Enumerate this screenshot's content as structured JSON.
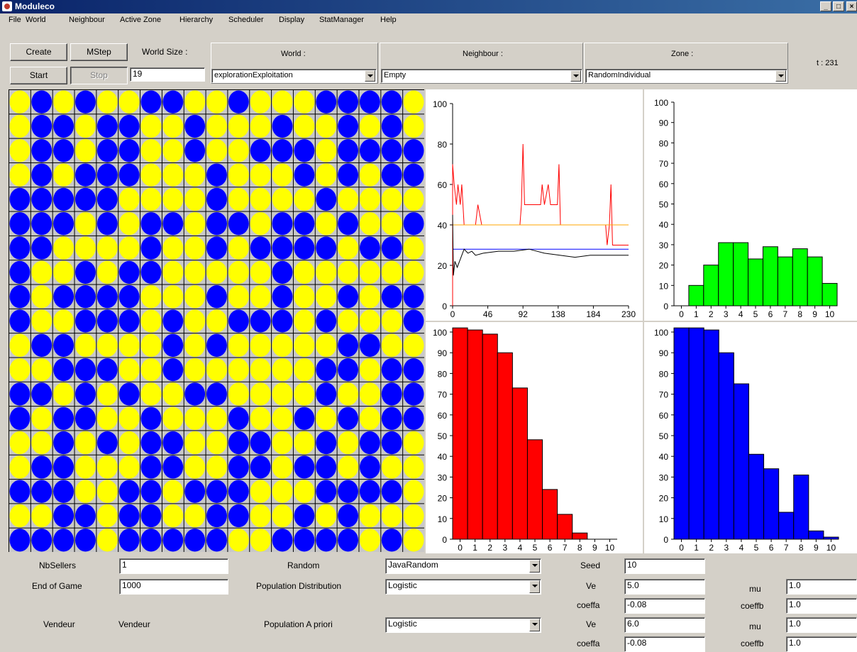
{
  "window": {
    "title": "Moduleco",
    "min_label": "_",
    "max_label": "□",
    "close_label": "×"
  },
  "menu": [
    "File",
    "World",
    "Neighbour",
    "Active Zone",
    "Hierarchy",
    "Scheduler",
    "Display",
    "StatManager",
    "Help"
  ],
  "toolbar": {
    "create": "Create",
    "mstep": "MStep",
    "start": "Start",
    "stop": "Stop",
    "world_size_label": "World Size :",
    "world_size_value": "19",
    "world_label": "World :",
    "world_value": "explorationExploitation",
    "neighbour_label": "Neighbour :",
    "neighbour_value": "Empty",
    "zone_label": "Zone :",
    "zone_value": "RandomIndividual",
    "time": "t : 231"
  },
  "grid": {
    "size": 19,
    "colors": {
      "Y": "#ffff00",
      "B": "#0000ff"
    },
    "rows": [
      "YBYBYYBBYYBYYYBBBBY",
      "YBBYBBYYBYYYBYYBYBY",
      "YBBYBBYYBYYBBBYBBBB",
      "YBYBBBYYYBYYYBYBYBB",
      "BBBBBYYYYBYYYYBYYYY",
      "BBBYBYBBYBBYBBYBYYB",
      "BBYYYYBYYBYBBBBYBBY",
      "BYYBYBBYYYYYBYYYYYY",
      "BYBBBBYYYBYYBYYBYBB",
      "BYYBBBYBYYBBBYBYYYB",
      "YBBYYYYBYBYYYYYBBYY",
      "YYBBBYYBYYYYYYBBYBB",
      "BBYBYBYYBBYYYYBYYBB",
      "BYBBYYBYYYBYYBYBYBB",
      "YYBYBYBBYYBBYYBYBBY",
      "YBBYYYBBYYBBYBBYBYY",
      "BBBYYBBYBBBYYYBBBBY",
      "YYBBYBBYYBBYYBYBYYY",
      "BBBBYBBBBBYYBBBBYBY"
    ]
  },
  "bottom": {
    "nbsellers_label": "NbSellers",
    "nbsellers_value": "1",
    "endgame_label": "End of Game",
    "endgame_value": "1000",
    "vendeur_label1": "Vendeur",
    "vendeur_label2": "Vendeur",
    "random_label": "Random",
    "random_value": "JavaRandom",
    "popdist_label": "Population Distribution",
    "popdist_value": "Logistic",
    "popapriori_label": "Population A priori",
    "popapriori_value": "Logistic",
    "seed_label": "Seed",
    "seed_value": "10",
    "ve_label1": "Ve",
    "ve_value1": "5.0",
    "coeffa_label1": "coeffa",
    "coeffa_value1": "-0.08",
    "ve_label2": "Ve",
    "ve_value2": "6.0",
    "coeffa_label2": "coeffa",
    "coeffa_value2": "-0.08",
    "mu_label1": "mu",
    "mu_value1": "1.0",
    "coeffb_label1": "coeffb",
    "coeffb_value1": "1.0",
    "mu_label2": "mu",
    "mu_value2": "1.0",
    "coeffb_label2": "coeffb",
    "coeffb_value2": "1.0"
  },
  "chart_data": [
    {
      "type": "line",
      "ylim": [
        0,
        100
      ],
      "xlim": [
        0,
        230
      ],
      "xticks": [
        "0",
        "46",
        "92",
        "138",
        "184",
        "230"
      ],
      "yticks": [
        "0",
        "20",
        "40",
        "60",
        "80",
        "100"
      ],
      "series": [
        {
          "color": "#ff0000",
          "points": [
            [
              0,
              0
            ],
            [
              0,
              70
            ],
            [
              2,
              60
            ],
            [
              5,
              50
            ],
            [
              7,
              60
            ],
            [
              10,
              50
            ],
            [
              12,
              60
            ],
            [
              15,
              40
            ],
            [
              30,
              40
            ],
            [
              33,
              50
            ],
            [
              38,
              40
            ],
            [
              40,
              40
            ],
            [
              88,
              40
            ],
            [
              90,
              50
            ],
            [
              92,
              80
            ],
            [
              94,
              50
            ],
            [
              115,
              50
            ],
            [
              117,
              60
            ],
            [
              120,
              50
            ],
            [
              125,
              60
            ],
            [
              128,
              50
            ],
            [
              137,
              50
            ],
            [
              139,
              70
            ],
            [
              141,
              40
            ],
            [
              200,
              40
            ],
            [
              202,
              30
            ],
            [
              205,
              40
            ],
            [
              207,
              60
            ],
            [
              209,
              30
            ],
            [
              230,
              30
            ]
          ]
        },
        {
          "color": "#ffa500",
          "points": [
            [
              0,
              40
            ],
            [
              230,
              40
            ]
          ]
        },
        {
          "color": "#0000ff",
          "points": [
            [
              0,
              28
            ],
            [
              230,
              28
            ]
          ]
        },
        {
          "color": "#000000",
          "points": [
            [
              0,
              45
            ],
            [
              1,
              15
            ],
            [
              3,
              22
            ],
            [
              6,
              19
            ],
            [
              10,
              23
            ],
            [
              15,
              28
            ],
            [
              20,
              26
            ],
            [
              25,
              27
            ],
            [
              30,
              25
            ],
            [
              40,
              26
            ],
            [
              60,
              27
            ],
            [
              80,
              27
            ],
            [
              100,
              28
            ],
            [
              120,
              26
            ],
            [
              140,
              25
            ],
            [
              160,
              24
            ],
            [
              180,
              25
            ],
            [
              200,
              25
            ],
            [
              230,
              25
            ]
          ]
        }
      ]
    },
    {
      "type": "bar",
      "ylim": [
        0,
        100
      ],
      "xticks": [
        "0",
        "1",
        "2",
        "3",
        "4",
        "5",
        "6",
        "7",
        "8",
        "9",
        "10"
      ],
      "yticks": [
        "0",
        "10",
        "20",
        "30",
        "40",
        "50",
        "60",
        "70",
        "80",
        "90",
        "100"
      ],
      "color": "#00ff00",
      "values": [
        0,
        10,
        20,
        31,
        31,
        23,
        29,
        24,
        28,
        24,
        11
      ]
    },
    {
      "type": "bar",
      "ylim": [
        0,
        100
      ],
      "xticks": [
        "0",
        "1",
        "2",
        "3",
        "4",
        "5",
        "6",
        "7",
        "8",
        "9",
        "10"
      ],
      "yticks": [
        "0",
        "10",
        "20",
        "30",
        "40",
        "50",
        "60",
        "70",
        "80",
        "90",
        "100"
      ],
      "color": "#ff0000",
      "values": [
        102,
        101,
        99,
        90,
        73,
        48,
        24,
        12,
        3,
        0,
        0
      ]
    },
    {
      "type": "bar",
      "ylim": [
        0,
        100
      ],
      "xticks": [
        "0",
        "1",
        "2",
        "3",
        "4",
        "5",
        "6",
        "7",
        "8",
        "9",
        "10"
      ],
      "yticks": [
        "0",
        "10",
        "20",
        "30",
        "40",
        "50",
        "60",
        "70",
        "80",
        "90",
        "100"
      ],
      "color": "#0000ff",
      "values": [
        102,
        102,
        101,
        90,
        75,
        41,
        34,
        13,
        31,
        4,
        1
      ]
    }
  ]
}
